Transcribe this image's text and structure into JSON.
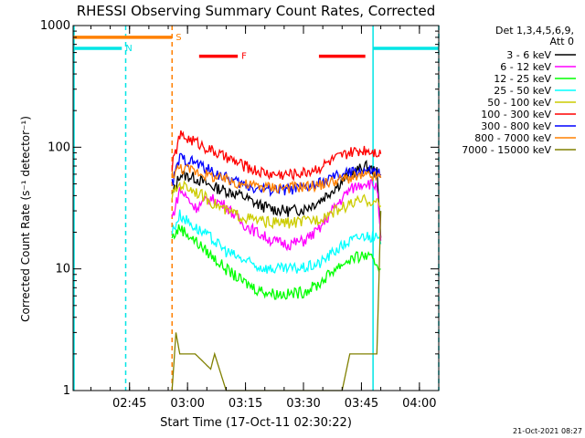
{
  "chart_data": {
    "type": "line",
    "title": "RHESSI Observing Summary Count Rates, Corrected",
    "xlabel": "Start Time (17-Oct-11 02:30:22)",
    "ylabel": "Corrected Count Rate (s⁻¹ detector⁻¹)",
    "y_scale": "log",
    "ylim": [
      1,
      1000
    ],
    "xlim_minutes_after_0230": [
      0.4,
      95
    ],
    "x_tick_labels": [
      "02:45",
      "03:00",
      "03:15",
      "03:30",
      "03:45",
      "04:00"
    ],
    "y_tick_labels": [
      "1",
      "10",
      "100",
      "1000"
    ],
    "legend": {
      "header": [
        "Det 1,3,4,5,6,9,",
        "Att 0"
      ],
      "placement": "right"
    },
    "series": [
      {
        "name": "3 - 6 keV",
        "color": "#000000",
        "points": [
          [
            "02:56",
            40
          ],
          [
            "02:58",
            60
          ],
          [
            "03:02",
            56
          ],
          [
            "03:06",
            48
          ],
          [
            "03:10",
            44
          ],
          [
            "03:14",
            40
          ],
          [
            "03:18",
            34
          ],
          [
            "03:22",
            31
          ],
          [
            "03:26",
            30
          ],
          [
            "03:30",
            31
          ],
          [
            "03:34",
            36
          ],
          [
            "03:38",
            46
          ],
          [
            "03:42",
            60
          ],
          [
            "03:46",
            70
          ],
          [
            "03:49",
            62
          ],
          [
            "03:50",
            18
          ]
        ]
      },
      {
        "name": "6 - 12 keV",
        "color": "#ff00ff",
        "points": [
          [
            "02:56",
            26
          ],
          [
            "02:58",
            45
          ],
          [
            "03:02",
            32
          ],
          [
            "03:06",
            38
          ],
          [
            "03:10",
            33
          ],
          [
            "03:14",
            24
          ],
          [
            "03:18",
            20
          ],
          [
            "03:22",
            17
          ],
          [
            "03:26",
            16
          ],
          [
            "03:30",
            17
          ],
          [
            "03:34",
            21
          ],
          [
            "03:38",
            32
          ],
          [
            "03:42",
            45
          ],
          [
            "03:46",
            52
          ],
          [
            "03:49",
            48
          ],
          [
            "03:50",
            17
          ]
        ]
      },
      {
        "name": "12 - 25 keV",
        "color": "#00ff00",
        "points": [
          [
            "02:56",
            18
          ],
          [
            "02:58",
            22
          ],
          [
            "03:02",
            17
          ],
          [
            "03:06",
            13
          ],
          [
            "03:10",
            10
          ],
          [
            "03:14",
            8
          ],
          [
            "03:18",
            6.8
          ],
          [
            "03:22",
            6.3
          ],
          [
            "03:26",
            6.2
          ],
          [
            "03:30",
            6.5
          ],
          [
            "03:34",
            7.5
          ],
          [
            "03:38",
            10
          ],
          [
            "03:42",
            12
          ],
          [
            "03:46",
            13
          ],
          [
            "03:49",
            11
          ],
          [
            "03:50",
            10
          ]
        ]
      },
      {
        "name": "25 - 50 keV",
        "color": "#00ffff",
        "points": [
          [
            "02:56",
            20
          ],
          [
            "02:58",
            28
          ],
          [
            "03:02",
            22
          ],
          [
            "03:06",
            18
          ],
          [
            "03:10",
            14
          ],
          [
            "03:14",
            12
          ],
          [
            "03:18",
            10.5
          ],
          [
            "03:22",
            10
          ],
          [
            "03:26",
            10
          ],
          [
            "03:30",
            10.2
          ],
          [
            "03:34",
            11
          ],
          [
            "03:38",
            14
          ],
          [
            "03:42",
            17
          ],
          [
            "03:46",
            19
          ],
          [
            "03:49",
            18
          ],
          [
            "03:50",
            16
          ]
        ]
      },
      {
        "name": "50 - 100 keV",
        "color": "#cccc00",
        "points": [
          [
            "02:56",
            40
          ],
          [
            "02:58",
            50
          ],
          [
            "03:02",
            44
          ],
          [
            "03:06",
            36
          ],
          [
            "03:10",
            30
          ],
          [
            "03:14",
            27
          ],
          [
            "03:18",
            25
          ],
          [
            "03:22",
            24
          ],
          [
            "03:26",
            24
          ],
          [
            "03:30",
            24.5
          ],
          [
            "03:34",
            26
          ],
          [
            "03:38",
            30
          ],
          [
            "03:42",
            34
          ],
          [
            "03:46",
            37
          ],
          [
            "03:49",
            35
          ],
          [
            "03:50",
            33
          ]
        ]
      },
      {
        "name": "100 - 300 keV",
        "color": "#ff0000",
        "points": [
          [
            "02:56",
            70
          ],
          [
            "02:58",
            125
          ],
          [
            "03:02",
            112
          ],
          [
            "03:06",
            95
          ],
          [
            "03:10",
            82
          ],
          [
            "03:14",
            72
          ],
          [
            "03:18",
            64
          ],
          [
            "03:22",
            60
          ],
          [
            "03:26",
            60
          ],
          [
            "03:30",
            62
          ],
          [
            "03:34",
            68
          ],
          [
            "03:38",
            80
          ],
          [
            "03:42",
            90
          ],
          [
            "03:46",
            96
          ],
          [
            "03:49",
            92
          ],
          [
            "03:50",
            88
          ]
        ]
      },
      {
        "name": "300 - 800 keV",
        "color": "#0000ff",
        "points": [
          [
            "02:56",
            50
          ],
          [
            "02:58",
            82
          ],
          [
            "03:02",
            75
          ],
          [
            "03:06",
            64
          ],
          [
            "03:10",
            56
          ],
          [
            "03:14",
            50
          ],
          [
            "03:18",
            46
          ],
          [
            "03:22",
            45
          ],
          [
            "03:26",
            45
          ],
          [
            "03:30",
            46
          ],
          [
            "03:34",
            50
          ],
          [
            "03:38",
            57
          ],
          [
            "03:42",
            62
          ],
          [
            "03:46",
            64
          ],
          [
            "03:49",
            62
          ],
          [
            "03:50",
            60
          ]
        ]
      },
      {
        "name": "800 - 7000 keV",
        "color": "#ff8000",
        "points": [
          [
            "02:56",
            60
          ],
          [
            "02:58",
            68
          ],
          [
            "03:02",
            64
          ],
          [
            "03:06",
            58
          ],
          [
            "03:10",
            54
          ],
          [
            "03:14",
            50
          ],
          [
            "03:18",
            48
          ],
          [
            "03:22",
            47
          ],
          [
            "03:26",
            47
          ],
          [
            "03:30",
            47.5
          ],
          [
            "03:34",
            49
          ],
          [
            "03:38",
            53
          ],
          [
            "03:42",
            56
          ],
          [
            "03:46",
            58
          ],
          [
            "03:49",
            57
          ],
          [
            "03:50",
            56
          ]
        ]
      },
      {
        "name": "7000 - 15000 keV",
        "color": "#808000",
        "points": [
          [
            "02:56",
            1
          ],
          [
            "02:57",
            3
          ],
          [
            "02:58",
            2
          ],
          [
            "03:02",
            2
          ],
          [
            "03:06",
            1.5
          ],
          [
            "03:07",
            2
          ],
          [
            "03:10",
            1
          ],
          [
            "03:40",
            1
          ],
          [
            "03:42",
            2
          ],
          [
            "03:46",
            2
          ],
          [
            "03:49",
            2
          ],
          [
            "03:50",
            30
          ]
        ]
      }
    ],
    "flag_bars": [
      {
        "label": "S",
        "color": "#ff8000",
        "y_value": 800,
        "from": "02:30",
        "to": "02:56"
      },
      {
        "label": "N",
        "color": "#00e5e5",
        "y_value": 650,
        "from": "02:30",
        "to": "02:43"
      },
      {
        "label": "",
        "color": "#00e5e5",
        "y_value": 650,
        "from": "03:48",
        "to": "04:05"
      },
      {
        "label": "F",
        "color": "#ff0000",
        "y_value": 560,
        "from": "03:03",
        "to": "03:13"
      },
      {
        "label": "",
        "color": "#ff0000",
        "y_value": 560,
        "from": "03:34",
        "to": "03:46"
      }
    ],
    "vertical_markers": [
      {
        "time": "02:30",
        "color": "#00e5e5",
        "style": "solid"
      },
      {
        "time": "02:44",
        "color": "#00e5e5",
        "style": "dashed"
      },
      {
        "time": "02:56",
        "color": "#ff8000",
        "style": "dashed"
      },
      {
        "time": "03:48",
        "color": "#00e5e5",
        "style": "solid"
      },
      {
        "time": "04:05",
        "color": "#00e5e5",
        "style": "dashed"
      }
    ],
    "timestamp": "21-Oct-2021 08:27"
  }
}
